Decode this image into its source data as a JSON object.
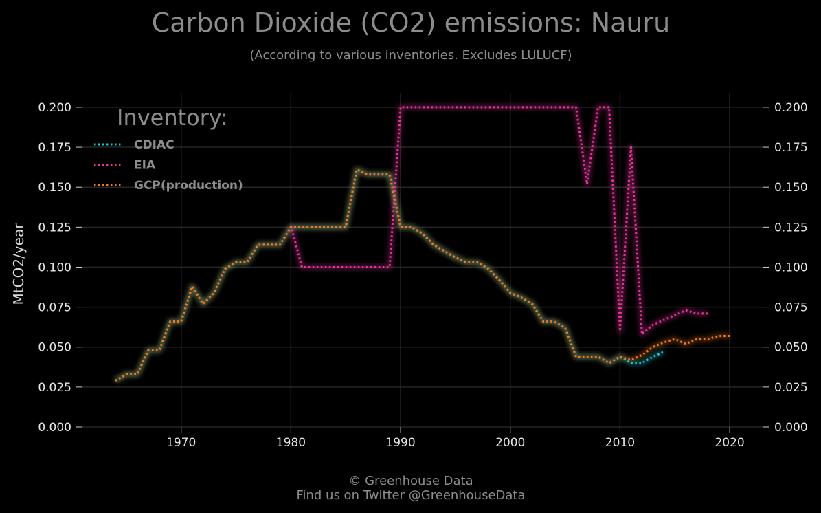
{
  "chart_data": {
    "type": "line",
    "title": "Carbon Dioxide (CO2) emissions: Nauru",
    "subtitle": "(According to various inventories. Excludes LULUCF)",
    "ylabel": "MtCO2/year",
    "xlabel": "",
    "xlim": [
      1961,
      2023
    ],
    "ylim": [
      0,
      0.209
    ],
    "x_ticks": [
      1970,
      1980,
      1990,
      2000,
      2010,
      2020
    ],
    "x_tick_labels": [
      "1970",
      "1980",
      "1990",
      "2000",
      "2010",
      "2020"
    ],
    "y_ticks": [
      0,
      0.025,
      0.05,
      0.075,
      0.1,
      0.125,
      0.15,
      0.175,
      0.2
    ],
    "y_tick_labels": [
      "0.000",
      "0.025",
      "0.050",
      "0.075",
      "0.100",
      "0.125",
      "0.150",
      "0.175",
      "0.200"
    ],
    "grid": true,
    "legend_title": "Inventory:",
    "legend_position": "top-left",
    "series": [
      {
        "name": "CDIAC",
        "color": "#19c9d6",
        "x": [
          1964,
          1965,
          1966,
          1967,
          1968,
          1969,
          1970,
          1971,
          1972,
          1973,
          1974,
          1975,
          1976,
          1977,
          1978,
          1979,
          1980,
          1981,
          1982,
          1983,
          1984,
          1985,
          1986,
          1987,
          1988,
          1989,
          1990,
          1991,
          1992,
          1993,
          1994,
          1995,
          1996,
          1997,
          1998,
          1999,
          2000,
          2001,
          2002,
          2003,
          2004,
          2005,
          2006,
          2007,
          2008,
          2009,
          2010,
          2011,
          2012,
          2013,
          2014
        ],
        "y": [
          0.029,
          0.033,
          0.033,
          0.048,
          0.048,
          0.066,
          0.066,
          0.088,
          0.077,
          0.084,
          0.099,
          0.103,
          0.103,
          0.114,
          0.114,
          0.114,
          0.125,
          0.125,
          0.125,
          0.125,
          0.125,
          0.125,
          0.161,
          0.158,
          0.158,
          0.158,
          0.125,
          0.125,
          0.121,
          0.114,
          0.11,
          0.106,
          0.103,
          0.103,
          0.099,
          0.092,
          0.084,
          0.081,
          0.077,
          0.066,
          0.066,
          0.062,
          0.044,
          0.044,
          0.044,
          0.04,
          0.044,
          0.04,
          0.04,
          0.044,
          0.047
        ]
      },
      {
        "name": "EIA",
        "color": "#e8359c",
        "x": [
          1980,
          1981,
          1982,
          1983,
          1984,
          1985,
          1986,
          1987,
          1988,
          1989,
          1990,
          1991,
          1992,
          1993,
          1994,
          1995,
          1996,
          1997,
          1998,
          1999,
          2000,
          2001,
          2002,
          2003,
          2004,
          2005,
          2006,
          2007,
          2008,
          2009,
          2010,
          2011,
          2012,
          2013,
          2014,
          2015,
          2016,
          2017,
          2018
        ],
        "y": [
          0.126,
          0.1,
          0.1,
          0.1,
          0.1,
          0.1,
          0.1,
          0.1,
          0.1,
          0.1,
          0.2,
          0.2,
          0.2,
          0.2,
          0.2,
          0.2,
          0.2,
          0.2,
          0.2,
          0.2,
          0.2,
          0.2,
          0.2,
          0.2,
          0.2,
          0.2,
          0.2,
          0.152,
          0.2,
          0.2,
          0.06,
          0.175,
          0.058,
          0.064,
          0.067,
          0.07,
          0.073,
          0.071,
          0.071
        ]
      },
      {
        "name": "GCP(production)",
        "color": "#f07a1e",
        "x": [
          1964,
          1965,
          1966,
          1967,
          1968,
          1969,
          1970,
          1971,
          1972,
          1973,
          1974,
          1975,
          1976,
          1977,
          1978,
          1979,
          1980,
          1981,
          1982,
          1983,
          1984,
          1985,
          1986,
          1987,
          1988,
          1989,
          1990,
          1991,
          1992,
          1993,
          1994,
          1995,
          1996,
          1997,
          1998,
          1999,
          2000,
          2001,
          2002,
          2003,
          2004,
          2005,
          2006,
          2007,
          2008,
          2009,
          2010,
          2011,
          2012,
          2013,
          2014,
          2015,
          2016,
          2017,
          2018,
          2019,
          2020
        ],
        "y": [
          0.029,
          0.033,
          0.033,
          0.048,
          0.048,
          0.066,
          0.066,
          0.088,
          0.077,
          0.084,
          0.099,
          0.103,
          0.103,
          0.114,
          0.114,
          0.114,
          0.125,
          0.125,
          0.125,
          0.125,
          0.125,
          0.125,
          0.161,
          0.158,
          0.158,
          0.158,
          0.125,
          0.125,
          0.121,
          0.114,
          0.11,
          0.106,
          0.103,
          0.103,
          0.099,
          0.092,
          0.084,
          0.081,
          0.077,
          0.066,
          0.066,
          0.062,
          0.044,
          0.044,
          0.044,
          0.04,
          0.044,
          0.042,
          0.045,
          0.05,
          0.053,
          0.055,
          0.052,
          0.055,
          0.055,
          0.057,
          0.057
        ]
      }
    ]
  },
  "footer": {
    "line1": "© Greenhouse Data",
    "line2": "Find us on Twitter @GreenhouseData"
  }
}
